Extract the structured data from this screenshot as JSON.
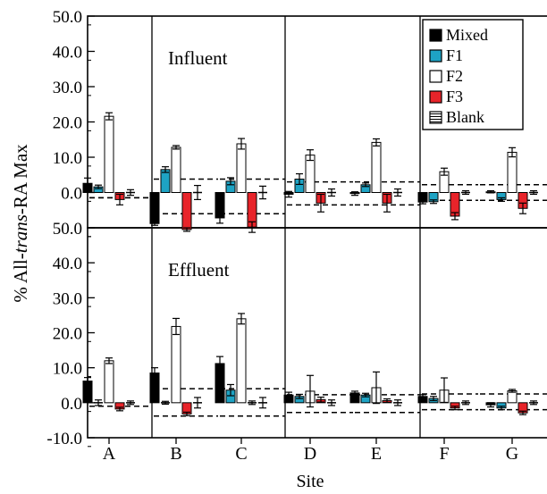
{
  "chart_data": {
    "type": "bar",
    "xlabel": "Site",
    "ylabel_parts": [
      "% All-",
      "trans",
      "-RA Max"
    ],
    "ylim": [
      -10,
      50
    ],
    "yticks": [
      "50.0",
      "40.0",
      "30.0",
      "20.0",
      "10.0",
      "0.0",
      "-10.0"
    ],
    "categories": [
      "A",
      "B",
      "C",
      "D",
      "E",
      "F",
      "G"
    ],
    "legend": [
      {
        "key": "mixed",
        "label": "Mixed",
        "color": "#000000",
        "style": "solid"
      },
      {
        "key": "f1",
        "label": "F1",
        "color": "#1ea3c4",
        "style": "solid"
      },
      {
        "key": "f2",
        "label": "F2",
        "color": "#ffffff",
        "style": "open"
      },
      {
        "key": "f3",
        "label": "F3",
        "color": "#e8242a",
        "style": "solid"
      },
      {
        "key": "blank",
        "label": "Blank",
        "color": "#ffffff",
        "style": "hatched"
      }
    ],
    "panels": [
      {
        "title": "Influent",
        "threshold_lines": {
          "B": [
            3.8,
            -6.0
          ],
          "C": [
            3.8,
            -6.0
          ],
          "D": [
            3.0,
            -3.5
          ],
          "E": [
            3.0,
            -3.5
          ],
          "F": [
            2.2,
            -2.2
          ],
          "G": [
            2.2,
            -2.2
          ],
          "A": [
            -1.5,
            -1.5
          ]
        },
        "series": [
          {
            "name": "Mixed",
            "values": [
              2.6,
              -8.8,
              -7.2,
              -0.5,
              -0.3,
              -2.7,
              0.2
            ],
            "errors": [
              1.5,
              0.5,
              1.5,
              0.8,
              0.5,
              0.5,
              0.3
            ]
          },
          {
            "name": "F1",
            "values": [
              1.6,
              6.5,
              3.2,
              3.8,
              2.2,
              -2.6,
              -2.0
            ],
            "errors": [
              0.5,
              0.8,
              1.0,
              1.5,
              0.5,
              0.5,
              0.5
            ]
          },
          {
            "name": "F2",
            "values": [
              21.6,
              12.8,
              13.8,
              10.6,
              14.2,
              5.9,
              11.4
            ],
            "errors": [
              1.0,
              0.5,
              1.5,
              1.5,
              1.0,
              1.0,
              1.3
            ]
          },
          {
            "name": "F3",
            "values": [
              -2.0,
              -10.5,
              -9.8,
              -3.0,
              -3.0,
              -6.7,
              -4.5
            ],
            "errors": [
              1.5,
              0.5,
              1.5,
              2.5,
              2.5,
              1.0,
              1.5
            ]
          },
          {
            "name": "Blank",
            "values": [
              0.0,
              0.0,
              0.0,
              0.0,
              0.0,
              0.0,
              0.0
            ],
            "errors": [
              0.8,
              2.0,
              1.8,
              1.0,
              1.0,
              0.5,
              0.5
            ]
          }
        ]
      },
      {
        "title": "Effluent",
        "threshold_lines": {
          "B": [
            4.0,
            -3.8
          ],
          "C": [
            4.0,
            -3.8
          ],
          "D": [
            2.3,
            -2.8
          ],
          "E": [
            2.3,
            -2.8
          ],
          "F": [
            2.5,
            -2.0
          ],
          "G": [
            2.5,
            -2.0
          ],
          "A": [
            -1.0,
            -1.0
          ]
        },
        "series": [
          {
            "name": "Mixed",
            "values": [
              6.2,
              8.5,
              11.2,
              2.2,
              2.8,
              1.8,
              -0.6
            ],
            "errors": [
              1.0,
              1.5,
              2.0,
              0.8,
              0.5,
              0.5,
              0.6
            ]
          },
          {
            "name": "F1",
            "values": [
              0.0,
              0.0,
              3.6,
              1.8,
              2.2,
              1.2,
              -1.5
            ],
            "errors": [
              0.8,
              0.4,
              1.6,
              0.6,
              0.5,
              0.6,
              0.5
            ]
          },
          {
            "name": "F2",
            "values": [
              12.0,
              21.8,
              24.0,
              3.3,
              4.3,
              3.6,
              3.4
            ],
            "errors": [
              0.8,
              2.3,
              1.5,
              4.5,
              4.5,
              3.5,
              0.4
            ]
          },
          {
            "name": "F3",
            "values": [
              -1.8,
              -3.2,
              0.0,
              0.9,
              0.6,
              -1.5,
              -2.9
            ],
            "errors": [
              0.5,
              0.5,
              0.5,
              0.7,
              0.5,
              0.5,
              0.5
            ]
          },
          {
            "name": "Blank",
            "values": [
              0.0,
              0.0,
              0.0,
              0.0,
              0.0,
              0.0,
              0.0
            ],
            "errors": [
              0.5,
              1.5,
              1.5,
              0.8,
              0.8,
              0.5,
              0.5
            ]
          }
        ]
      }
    ]
  }
}
